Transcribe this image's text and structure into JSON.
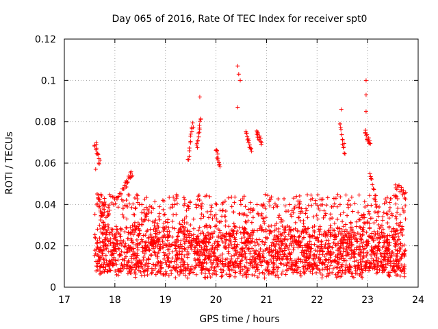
{
  "chart_data": {
    "type": "scatter",
    "title": "Day 065 of 2016, Rate Of TEC Index for receiver spt0",
    "xlabel": "GPS time / hours",
    "ylabel": "ROTI / TECUs",
    "xlim": [
      17,
      24
    ],
    "ylim": [
      0,
      0.12
    ],
    "x_ticks": [
      17,
      18,
      19,
      20,
      21,
      22,
      23,
      24
    ],
    "x_tick_labels": [
      "17",
      "18",
      "19",
      "20",
      "21",
      "22",
      "23",
      "24"
    ],
    "y_ticks": [
      0,
      0.02,
      0.04,
      0.06,
      0.08,
      0.1,
      0.12
    ],
    "y_tick_labels": [
      "0",
      "0.02",
      "0.04",
      "0.06",
      "0.08",
      "0.1",
      "0.12"
    ],
    "grid": true,
    "marker": "plus",
    "color": "#ff0000",
    "x_range_of_data": [
      17.6,
      23.75
    ],
    "notable_points": [
      {
        "x": 17.63,
        "y": 0.07
      },
      {
        "x": 17.62,
        "y": 0.057
      },
      {
        "x": 19.68,
        "y": 0.092
      },
      {
        "x": 20.43,
        "y": 0.107
      },
      {
        "x": 20.45,
        "y": 0.103
      },
      {
        "x": 20.48,
        "y": 0.1
      },
      {
        "x": 20.43,
        "y": 0.087
      },
      {
        "x": 22.48,
        "y": 0.086
      },
      {
        "x": 22.97,
        "y": 0.1
      },
      {
        "x": 22.97,
        "y": 0.093
      },
      {
        "x": 22.97,
        "y": 0.085
      }
    ],
    "segments": [
      {
        "x_start": 17.6,
        "x_end": 17.7,
        "y_start": 0.07,
        "y_end": 0.06
      },
      {
        "x_start": 17.65,
        "x_end": 17.78,
        "y_start": 0.044,
        "y_end": 0.03
      },
      {
        "x_start": 17.95,
        "x_end": 18.22,
        "y_start": 0.04,
        "y_end": 0.05
      },
      {
        "x_start": 18.2,
        "x_end": 18.35,
        "y_start": 0.05,
        "y_end": 0.055
      },
      {
        "x_start": 18.35,
        "x_end": 18.8,
        "y_start": 0.028,
        "y_end": 0.04
      },
      {
        "x_start": 19.45,
        "x_end": 19.55,
        "y_start": 0.062,
        "y_end": 0.08
      },
      {
        "x_start": 19.62,
        "x_end": 19.7,
        "y_start": 0.068,
        "y_end": 0.081
      },
      {
        "x_start": 20.0,
        "x_end": 20.08,
        "y_start": 0.066,
        "y_end": 0.058
      },
      {
        "x_start": 20.6,
        "x_end": 20.7,
        "y_start": 0.074,
        "y_end": 0.065
      },
      {
        "x_start": 20.8,
        "x_end": 20.9,
        "y_start": 0.076,
        "y_end": 0.07
      },
      {
        "x_start": 22.45,
        "x_end": 22.55,
        "y_start": 0.078,
        "y_end": 0.065
      },
      {
        "x_start": 22.95,
        "x_end": 23.05,
        "y_start": 0.075,
        "y_end": 0.069
      },
      {
        "x_start": 23.05,
        "x_end": 23.2,
        "y_start": 0.055,
        "y_end": 0.035
      },
      {
        "x_start": 23.55,
        "x_end": 23.75,
        "y_start": 0.049,
        "y_end": 0.045
      }
    ],
    "cluster": {
      "x_start": 17.6,
      "x_end": 23.75,
      "y_min": 0.004,
      "y_typical": 0.016,
      "y_upper": 0.045
    }
  }
}
